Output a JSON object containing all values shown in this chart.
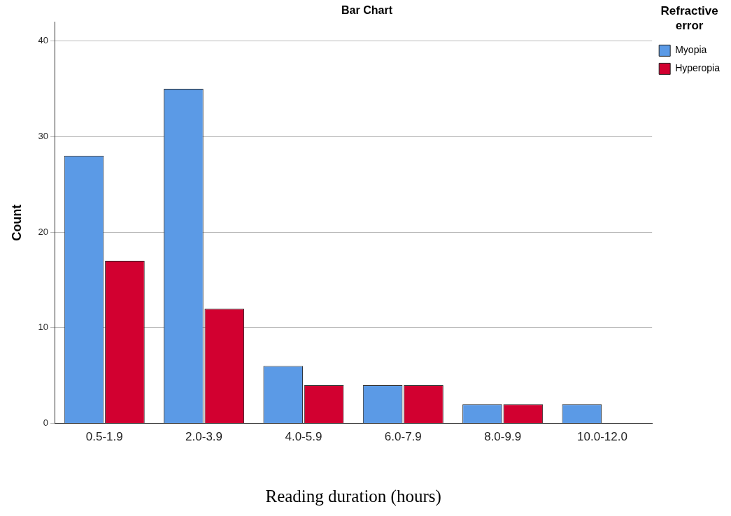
{
  "chart_data": {
    "type": "bar",
    "title": "Bar Chart",
    "xlabel": "Reading duration (hours)",
    "ylabel": "Count",
    "legend_title": "Refractive error",
    "categories": [
      "0.5-1.9",
      "2.0-3.9",
      "4.0-5.9",
      "6.0-7.9",
      "8.0-9.9",
      "10.0-12.0"
    ],
    "series": [
      {
        "name": "Myopia",
        "color": "#5b9ae6",
        "values": [
          28,
          35,
          6,
          4,
          2,
          2
        ]
      },
      {
        "name": "Hyperopia",
        "color": "#d20030",
        "values": [
          17,
          12,
          4,
          4,
          2,
          0
        ]
      }
    ],
    "ylim": [
      0,
      42
    ],
    "yticks": [
      0,
      10,
      20,
      30,
      40
    ],
    "grid": "y",
    "legend": "top right"
  }
}
